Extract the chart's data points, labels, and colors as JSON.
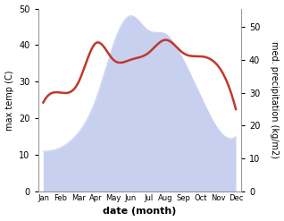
{
  "months": [
    "Jan",
    "Feb",
    "Mar",
    "Apr",
    "May",
    "Jun",
    "Jul",
    "Aug",
    "Sep",
    "Oct",
    "Nov",
    "Dec"
  ],
  "x": [
    0,
    1,
    2,
    3,
    4,
    5,
    6,
    7,
    8,
    9,
    10,
    11
  ],
  "temp": [
    11,
    12,
    16,
    25,
    40,
    48,
    44,
    43,
    36,
    26,
    17,
    15
  ],
  "precip": [
    27,
    30,
    33,
    45,
    40,
    40,
    42,
    46,
    42,
    41,
    38,
    25
  ],
  "temp_fill_color": "#c8d0f0",
  "precip_color": "#c0392b",
  "temp_ylim": [
    0,
    50
  ],
  "precip_ylim": [
    0,
    55.5
  ],
  "precip_yticks": [
    0,
    10,
    20,
    30,
    40,
    50
  ],
  "temp_yticks": [
    0,
    10,
    20,
    30,
    40,
    50
  ],
  "ylabel_left": "max temp (C)",
  "ylabel_right": "med. precipitation (kg/m2)",
  "xlabel": "date (month)",
  "bg_color": "#ffffff"
}
